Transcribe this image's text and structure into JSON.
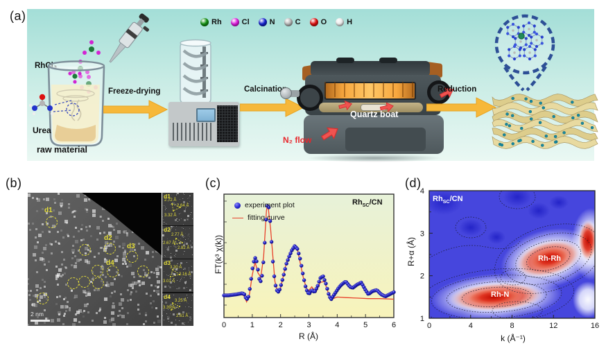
{
  "panels": {
    "a": {
      "label": "(a)",
      "legend_atoms": [
        {
          "name": "Rh",
          "color": "#149114"
        },
        {
          "name": "Cl",
          "color": "#dd1cdd"
        },
        {
          "name": "N",
          "color": "#1522cf"
        },
        {
          "name": "C",
          "color": "#b9b9b9"
        },
        {
          "name": "O",
          "color": "#dd0f0f"
        },
        {
          "name": "H",
          "color": "#e9e9e9"
        }
      ],
      "labels": {
        "rhcl3": "RhCl₃",
        "urea": "Urea",
        "raw_material": "raw material",
        "n2_flow": "N₂ flow",
        "quartz_boat": "Quartz boat"
      },
      "steps": [
        {
          "label": "Freeze-drying"
        },
        {
          "label": "Calcination"
        },
        {
          "label": "Reduction"
        }
      ]
    },
    "b": {
      "label": "(b)",
      "scale_bar": "2 nm",
      "sites": [
        {
          "id": "d1",
          "measurements": [
            "2.72 Å",
            "2.64 Å",
            "3.32 Å"
          ]
        },
        {
          "id": "d2",
          "measurements": [
            "2.77 Å",
            "2.67 Å",
            "2.82 Å"
          ]
        },
        {
          "id": "d3",
          "measurements": [
            "3.30 Å",
            "2.16 Å",
            "3.01 Å"
          ]
        },
        {
          "id": "d4",
          "measurements": [
            "3.25 Å",
            "3.39 Å",
            "2.61 Å"
          ]
        }
      ]
    },
    "c": {
      "label": "(c)"
    },
    "d": {
      "label": "(d)"
    }
  },
  "chart_data": [
    {
      "type": "line",
      "panel": "c",
      "title": "",
      "xlabel": "R (Å)",
      "ylabel": "FT(k³ χ(k))",
      "xlim": [
        0,
        6
      ],
      "xticks": [
        0,
        1,
        2,
        3,
        4,
        5,
        6
      ],
      "grid": false,
      "legend_position": "upper-left",
      "sample_label": {
        "pre": "Rh",
        "sub": "SC",
        "post": "/CN"
      },
      "legend": [
        {
          "label": "experiment plot",
          "marker": "sphere",
          "color": "#2525cf"
        },
        {
          "label": "fitting curve",
          "marker": "line",
          "color": "#e8402a"
        }
      ],
      "series": [
        {
          "name": "experiment plot",
          "x": [
            0,
            0.15,
            0.3,
            0.45,
            0.55,
            0.65,
            0.72,
            0.8,
            0.87,
            0.93,
            1.0,
            1.05,
            1.1,
            1.15,
            1.2,
            1.25,
            1.3,
            1.35,
            1.4,
            1.45,
            1.5,
            1.55,
            1.6,
            1.65,
            1.7,
            1.75,
            1.8,
            1.85,
            1.9,
            1.95,
            2.0,
            2.1,
            2.2,
            2.3,
            2.4,
            2.5,
            2.6,
            2.7,
            2.8,
            2.9,
            3.0,
            3.1,
            3.2,
            3.3,
            3.4,
            3.5,
            3.6,
            3.7,
            3.78,
            3.85,
            3.95,
            4.05,
            4.15,
            4.3,
            4.45,
            4.55,
            4.7,
            4.85,
            5.0,
            5.1,
            5.25,
            5.4,
            5.55,
            5.7,
            5.85,
            6.0
          ],
          "y": [
            0.09,
            0.09,
            0.095,
            0.1,
            0.105,
            0.11,
            0.1,
            0.05,
            0.08,
            0.18,
            0.33,
            0.4,
            0.44,
            0.41,
            0.33,
            0.24,
            0.22,
            0.28,
            0.42,
            0.62,
            0.85,
            0.95,
            0.89,
            0.72,
            0.5,
            0.33,
            0.21,
            0.15,
            0.12,
            0.13,
            0.17,
            0.27,
            0.38,
            0.45,
            0.51,
            0.55,
            0.52,
            0.42,
            0.27,
            0.15,
            0.1,
            0.14,
            0.12,
            0.17,
            0.25,
            0.27,
            0.2,
            0.1,
            0.05,
            0.08,
            0.12,
            0.16,
            0.19,
            0.22,
            0.17,
            0.16,
            0.19,
            0.21,
            0.14,
            0.1,
            0.13,
            0.14,
            0.1,
            0.08,
            0.1,
            0.12
          ]
        },
        {
          "name": "fitting curve",
          "x": [
            0,
            0.3,
            0.55,
            0.7,
            0.8,
            0.9,
            1.0,
            1.1,
            1.2,
            1.3,
            1.4,
            1.5,
            1.55,
            1.65,
            1.8,
            1.9,
            2.0,
            2.2,
            2.4,
            2.5,
            2.6,
            2.8,
            2.95,
            3.1,
            3.25,
            3.4,
            3.55,
            3.7,
            3.85,
            4.0,
            4.3,
            4.7,
            5.1,
            5.5,
            6.0
          ],
          "y": [
            0.085,
            0.09,
            0.1,
            0.09,
            0.03,
            0.1,
            0.28,
            0.4,
            0.3,
            0.26,
            0.45,
            0.88,
            0.94,
            0.7,
            0.22,
            0.12,
            0.16,
            0.39,
            0.52,
            0.56,
            0.51,
            0.26,
            0.12,
            0.17,
            0.12,
            0.21,
            0.22,
            0.1,
            0.06,
            0.075,
            0.07,
            0.065,
            0.06,
            0.06,
            0.055
          ]
        }
      ]
    },
    {
      "type": "heatmap",
      "panel": "d",
      "xlabel": "k (Å⁻¹)",
      "ylabel": "R+α (Å)",
      "xlim": [
        0,
        16
      ],
      "ylim": [
        1,
        4
      ],
      "xticks": [
        0,
        4,
        8,
        12,
        16
      ],
      "yticks": [
        1,
        2,
        3,
        4
      ],
      "sample_label": {
        "pre": "Rh",
        "sub": "SC",
        "post": "/CN"
      },
      "features": [
        {
          "label": "Rh-N",
          "k": 6.5,
          "r_plus_a": 1.5,
          "intensity": "high"
        },
        {
          "label": "Rh-Rh",
          "k": 11.5,
          "r_plus_a": 2.4,
          "intensity": "high"
        }
      ]
    }
  ]
}
